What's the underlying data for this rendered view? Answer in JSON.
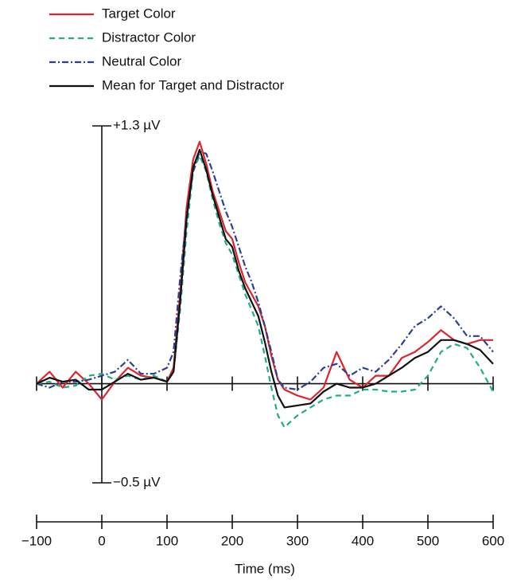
{
  "chart_data": {
    "type": "line",
    "x_label": "Time (ms)",
    "x": [
      -100,
      -80,
      -60,
      -40,
      -20,
      0,
      20,
      40,
      60,
      80,
      100,
      110,
      120,
      130,
      140,
      150,
      160,
      170,
      180,
      190,
      200,
      210,
      220,
      230,
      240,
      250,
      260,
      270,
      280,
      300,
      320,
      340,
      360,
      380,
      400,
      420,
      440,
      460,
      480,
      500,
      520,
      540,
      560,
      580,
      600
    ],
    "series": [
      {
        "name": "Target Color",
        "color": "#e0242b",
        "dash": "none",
        "values": [
          0,
          0.06,
          -0.02,
          0.06,
          0,
          -0.08,
          0.01,
          0.08,
          0.04,
          0.03,
          0.01,
          0.08,
          0.45,
          0.89,
          1.13,
          1.22,
          1.11,
          0.97,
          0.87,
          0.77,
          0.73,
          0.61,
          0.51,
          0.45,
          0.39,
          0.29,
          0.14,
          0.02,
          -0.03,
          -0.06,
          -0.08,
          -0.02,
          0.16,
          0.02,
          -0.02,
          0.04,
          0.04,
          0.13,
          0.16,
          0.21,
          0.27,
          0.22,
          0.2,
          0.22,
          0.22
        ]
      },
      {
        "name": "Distractor Color",
        "color": "#1fae83",
        "dash": "7,5",
        "values": [
          0,
          0.01,
          -0.02,
          -0.01,
          0.04,
          0.05,
          0.02,
          0.04,
          0.02,
          0.04,
          0.01,
          0.06,
          0.37,
          0.77,
          1.07,
          1.15,
          1.07,
          0.93,
          0.81,
          0.71,
          0.65,
          0.55,
          0.45,
          0.37,
          0.29,
          0.14,
          -0.02,
          -0.16,
          -0.22,
          -0.16,
          -0.12,
          -0.08,
          -0.06,
          -0.06,
          -0.03,
          -0.03,
          -0.04,
          -0.04,
          -0.03,
          0.04,
          0.16,
          0.2,
          0.18,
          0.08,
          -0.04
        ]
      },
      {
        "name": "Neutral Color",
        "color": "#2c3f96",
        "dash": "8,3,2,3",
        "values": [
          0,
          -0.02,
          0.01,
          0.01,
          0.02,
          0.04,
          0.06,
          0.12,
          0.05,
          0.05,
          0.08,
          0.16,
          0.53,
          0.85,
          1.07,
          1.17,
          1.16,
          1.07,
          0.97,
          0.87,
          0.79,
          0.69,
          0.59,
          0.51,
          0.41,
          0.29,
          0.16,
          0.02,
          -0.02,
          -0.03,
          0.01,
          0.08,
          0.1,
          0.04,
          0.08,
          0.06,
          0.12,
          0.2,
          0.29,
          0.33,
          0.39,
          0.33,
          0.24,
          0.24,
          0.16
        ]
      },
      {
        "name": "Mean for Target and Distractor",
        "color": "#111111",
        "dash": "none",
        "values": [
          0,
          0.03,
          0.01,
          0.02,
          -0.03,
          -0.03,
          0.01,
          0.05,
          0.02,
          0.03,
          0.01,
          0.06,
          0.41,
          0.83,
          1.09,
          1.18,
          1.08,
          0.95,
          0.84,
          0.73,
          0.69,
          0.57,
          0.48,
          0.41,
          0.34,
          0.21,
          0.06,
          -0.06,
          -0.12,
          -0.11,
          -0.1,
          -0.04,
          0,
          -0.02,
          -0.02,
          0,
          0.04,
          0.08,
          0.13,
          0.16,
          0.22,
          0.22,
          0.2,
          0.17,
          0.1
        ]
      }
    ],
    "xlim": [
      -100,
      600
    ],
    "xticks": [
      {
        "value": -100,
        "label": "−100"
      },
      0,
      100,
      200,
      300,
      400,
      500,
      600
    ],
    "ylim": [
      -0.5,
      1.3
    ],
    "yticks": [
      {
        "value": 1.3,
        "label": "+1.3 µV"
      },
      {
        "value": -0.5,
        "label": "−0.5 µV"
      }
    ],
    "legend": "top-left"
  }
}
